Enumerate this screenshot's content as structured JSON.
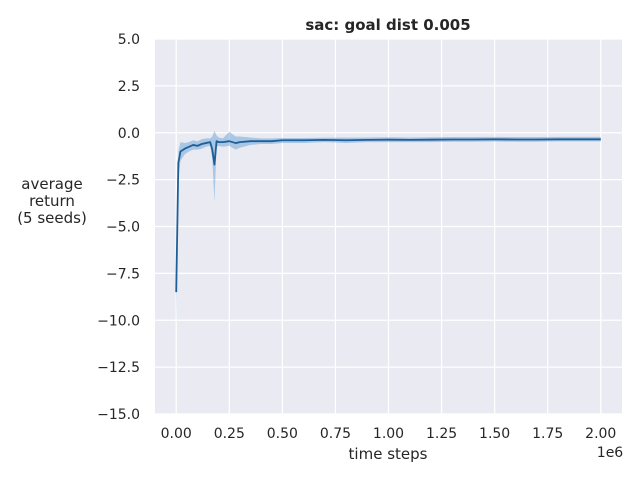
{
  "chart_data": {
    "type": "line",
    "title": "sac: goal dist 0.005",
    "xlabel": "time steps",
    "ylabel_lines": [
      "average",
      "return",
      "(5 seeds)"
    ],
    "x_offset_text": "1e6",
    "xlim": [
      -0.1,
      2.1
    ],
    "ylim": [
      -15.0,
      5.0
    ],
    "x_ticks": [
      0.0,
      0.25,
      0.5,
      0.75,
      1.0,
      1.25,
      1.5,
      1.75,
      2.0
    ],
    "x_tick_labels": [
      "0.00",
      "0.25",
      "0.50",
      "0.75",
      "1.00",
      "1.25",
      "1.50",
      "1.75",
      "2.00"
    ],
    "y_ticks": [
      5.0,
      2.5,
      0.0,
      -2.5,
      -5.0,
      -7.5,
      -10.0,
      -12.5,
      -15.0
    ],
    "y_tick_labels": [
      "5.0",
      "2.5",
      "0.0",
      "−2.5",
      "−5.0",
      "−7.5",
      "−10.0",
      "−12.5",
      "−15.0"
    ],
    "grid": true,
    "colors": {
      "background": "#eaeaf2",
      "grid": "#ffffff",
      "line": "#1f5f97",
      "band": "#5b9bd5"
    },
    "series": [
      {
        "x": [
          0.0,
          0.01,
          0.02,
          0.04,
          0.06,
          0.08,
          0.1,
          0.12,
          0.14,
          0.16,
          0.17,
          0.18,
          0.19,
          0.2,
          0.22,
          0.25,
          0.28,
          0.3,
          0.35,
          0.4,
          0.45,
          0.5,
          0.6,
          0.7,
          0.8,
          0.9,
          1.0,
          1.1,
          1.2,
          1.3,
          1.4,
          1.5,
          1.6,
          1.7,
          1.8,
          1.9,
          2.0
        ],
        "y": [
          -8.5,
          -1.6,
          -1.0,
          -0.85,
          -0.75,
          -0.65,
          -0.7,
          -0.6,
          -0.55,
          -0.5,
          -0.9,
          -1.7,
          -0.45,
          -0.5,
          -0.5,
          -0.45,
          -0.55,
          -0.5,
          -0.45,
          -0.45,
          -0.45,
          -0.4,
          -0.4,
          -0.38,
          -0.4,
          -0.38,
          -0.37,
          -0.38,
          -0.37,
          -0.36,
          -0.36,
          -0.35,
          -0.36,
          -0.36,
          -0.35,
          -0.35,
          -0.35
        ],
        "y_lower": [
          -10.2,
          -2.5,
          -1.5,
          -1.15,
          -1.0,
          -0.9,
          -0.9,
          -0.85,
          -0.75,
          -0.7,
          -1.4,
          -3.7,
          -0.75,
          -0.7,
          -0.75,
          -0.7,
          -0.9,
          -0.8,
          -0.65,
          -0.6,
          -0.6,
          -0.55,
          -0.55,
          -0.5,
          -0.55,
          -0.5,
          -0.5,
          -0.5,
          -0.5,
          -0.48,
          -0.48,
          -0.47,
          -0.48,
          -0.48,
          -0.46,
          -0.46,
          -0.46
        ],
        "y_upper": [
          -7.0,
          -1.0,
          -0.5,
          -0.55,
          -0.5,
          -0.4,
          -0.45,
          -0.35,
          -0.3,
          -0.3,
          -0.2,
          0.1,
          -0.15,
          -0.25,
          -0.3,
          0.05,
          -0.2,
          -0.2,
          -0.25,
          -0.3,
          -0.3,
          -0.28,
          -0.28,
          -0.26,
          -0.26,
          -0.25,
          -0.24,
          -0.25,
          -0.24,
          -0.23,
          -0.23,
          -0.22,
          -0.23,
          -0.23,
          -0.22,
          -0.22,
          -0.22
        ]
      }
    ]
  }
}
